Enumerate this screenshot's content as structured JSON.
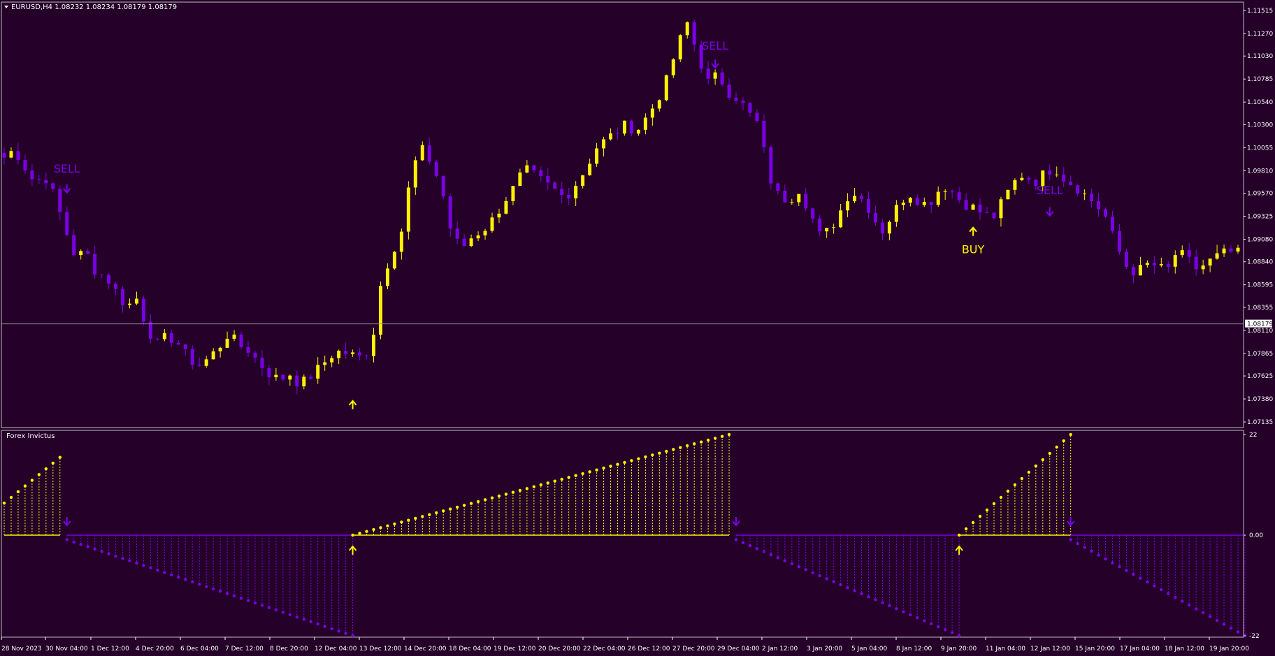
{
  "symbol_info": {
    "label": "EURUSD,H4  1.08232 1.08234 1.08179 1.08179"
  },
  "indicator": {
    "label": "Forex Invictus"
  },
  "current_price_label": "1.08179",
  "colors": {
    "background": "#250029",
    "bull": "#FFF200",
    "bear": "#7A00E6",
    "grid_text": "#FFFFFF",
    "separator": "#C0C0C0"
  },
  "chart_data": [
    {
      "type": "candlestick",
      "symbol": "EURUSD",
      "timeframe": "H4",
      "ohlc_header": {
        "open": 1.08232,
        "high": 1.08234,
        "low": 1.08179,
        "close": 1.08179
      },
      "price_range": [
        1.07135,
        1.11515
      ],
      "yticks": [
        1.11515,
        1.1127,
        1.1103,
        1.10785,
        1.1054,
        1.103,
        1.10055,
        1.0981,
        1.0957,
        1.09325,
        1.0908,
        1.0884,
        1.08595,
        1.08355,
        1.0811,
        1.07865,
        1.07625,
        1.0738,
        1.07135
      ],
      "ytick_labels": [
        "1.11515",
        "1.11270",
        "1.11030",
        "1.10785",
        "1.10540",
        "1.10300",
        "1.10055",
        "1.09810",
        "1.09570",
        "1.09325",
        "1.09080",
        "1.08840",
        "1.08595",
        "1.08355",
        "1.08110",
        "1.07865",
        "1.07625",
        "1.07380",
        "1.07135"
      ],
      "current_price": 1.08179,
      "xticks": [
        "28 Nov 2023",
        "30 Nov 04:00",
        "1 Dec 12:00",
        "4 Dec 20:00",
        "6 Dec 04:00",
        "7 Dec 12:00",
        "8 Dec 20:00",
        "12 Dec 04:00",
        "13 Dec 12:00",
        "14 Dec 20:00",
        "18 Dec 04:00",
        "19 Dec 12:00",
        "20 Dec 20:00",
        "22 Dec 04:00",
        "26 Dec 12:00",
        "27 Dec 20:00",
        "29 Dec 04:00",
        "2 Jan 12:00",
        "3 Jan 20:00",
        "5 Jan 04:00",
        "8 Jan 12:00",
        "9 Jan 20:00",
        "11 Jan 04:00",
        "12 Jan 12:00",
        "15 Jan 20:00",
        "17 Jan 04:00",
        "18 Jan 12:00",
        "19 Jan 20:00"
      ],
      "close_path": [
        1.0995,
        1.1004,
        1.0985,
        1.0968,
        1.0975,
        1.0952,
        1.0918,
        1.0889,
        1.0895,
        1.0873,
        1.0868,
        1.0852,
        1.0836,
        1.0845,
        1.0814,
        1.0796,
        1.0805,
        1.0798,
        1.0782,
        1.0773,
        1.0781,
        1.0792,
        1.0808,
        1.0795,
        1.079,
        1.0776,
        1.0765,
        1.0758,
        1.0765,
        1.0753,
        1.0762,
        1.0772,
        1.0784,
        1.0789,
        1.0785,
        1.0782,
        1.0793,
        1.0865,
        1.0893,
        1.0918,
        1.0984,
        1.1003,
        1.0988,
        1.0957,
        1.0908,
        1.09,
        1.0912,
        1.0918,
        1.093,
        1.0948,
        1.0963,
        1.0983,
        1.0976,
        1.0968,
        1.096,
        1.0952,
        1.0966,
        1.0982,
        1.1005,
        1.1014,
        1.1022,
        1.103,
        1.1023,
        1.1038,
        1.1055,
        1.1078,
        1.1113,
        1.1138,
        1.1105,
        1.1075,
        1.1083,
        1.1065,
        1.1058,
        1.1042,
        1.103,
        1.0975,
        1.0953,
        1.095,
        1.0962,
        1.0937,
        1.0912,
        1.0918,
        1.0938,
        1.096,
        1.0952,
        1.0938,
        1.0915,
        1.0932,
        1.095,
        1.0957,
        1.0945,
        1.095,
        1.0966,
        1.0958,
        1.0947,
        1.0942,
        1.0935,
        1.0931,
        1.095,
        1.0968,
        1.0978,
        1.0968,
        1.0978,
        1.0985,
        1.0972,
        1.0965,
        1.0955,
        1.0946,
        1.0932,
        1.0903,
        1.088,
        1.0872,
        1.0881,
        1.088,
        1.0873,
        1.0895,
        1.0887,
        1.0876,
        1.0883,
        1.089,
        1.0895,
        1.0893
      ],
      "seed": 7,
      "annotations": [
        {
          "text": "SELL",
          "kind": "sell",
          "bar": 9,
          "label_price": 1.0979,
          "arrow_price": 1.0962
        },
        {
          "text": "SELL",
          "kind": "sell",
          "bar": 102,
          "label_price": 1.111,
          "arrow_price": 1.1095
        },
        {
          "text": "SELL",
          "kind": "sell",
          "bar": 150,
          "label_price": 1.0956,
          "arrow_price": 1.09375
        },
        {
          "text": "BUY",
          "kind": "buy",
          "bar": 139,
          "label_price": 1.0893,
          "arrow_price": 1.0916
        },
        {
          "text": "",
          "kind": "buy",
          "bar": 50,
          "label_price": null,
          "arrow_price": 1.07315
        }
      ]
    },
    {
      "type": "histogram",
      "name": "Forex Invictus",
      "range": [
        -22,
        22
      ],
      "yticks": [
        22,
        0,
        -22
      ],
      "ytick_labels": [
        "22",
        "0.00",
        "-22"
      ],
      "segments": [
        {
          "start": 0,
          "end": 8,
          "from": 7,
          "to": 17,
          "dir": "up"
        },
        {
          "start": 9,
          "end": 50,
          "from": -1,
          "to": -22,
          "dir": "down"
        },
        {
          "start": 50,
          "end": 104,
          "from": 0,
          "to": 22,
          "dir": "up"
        },
        {
          "start": 105,
          "end": 137,
          "from": -1,
          "to": -22,
          "dir": "down"
        },
        {
          "start": 137,
          "end": 153,
          "from": 0,
          "to": 22,
          "dir": "up"
        },
        {
          "start": 153,
          "end": 178,
          "from": -1,
          "to": -22,
          "dir": "down"
        }
      ],
      "arrows": [
        {
          "bar": 9,
          "dir": "down"
        },
        {
          "bar": 50,
          "dir": "up"
        },
        {
          "bar": 105,
          "dir": "down"
        },
        {
          "bar": 137,
          "dir": "up"
        },
        {
          "bar": 153,
          "dir": "down"
        }
      ]
    }
  ]
}
